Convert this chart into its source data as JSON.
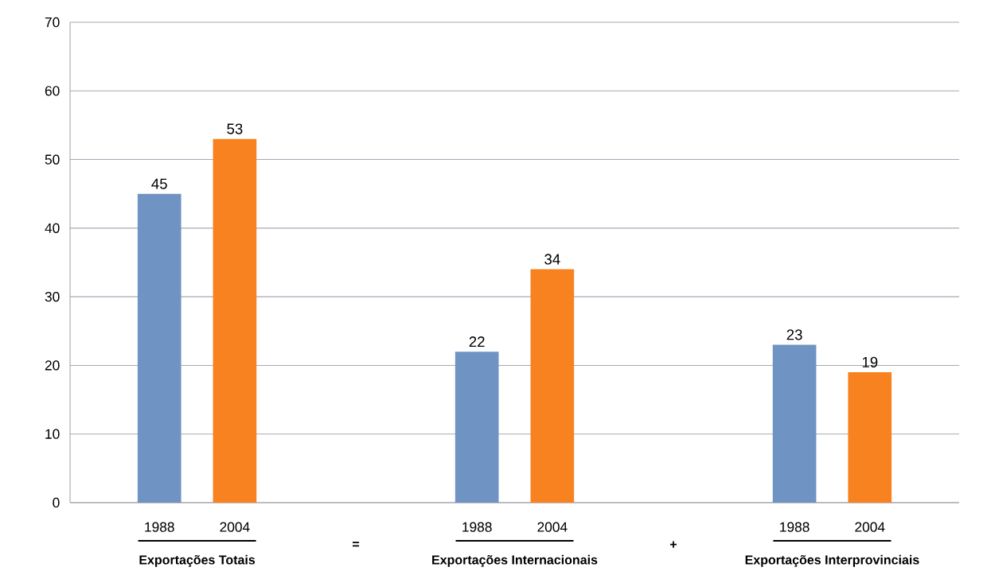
{
  "chart_data": {
    "type": "bar",
    "categories": [
      "Exportações Totais",
      "Exportações  Internacionais",
      "Exportações Interprovinciais"
    ],
    "series": [
      {
        "name": "1988",
        "color": "#6f93c3",
        "values": [
          45,
          22,
          23
        ]
      },
      {
        "name": "2004",
        "color": "#f7821f",
        "values": [
          53,
          34,
          19
        ]
      }
    ],
    "ylim": [
      0,
      70
    ],
    "yticks": [
      0,
      10,
      20,
      30,
      40,
      50,
      60,
      70
    ],
    "grid": "y",
    "data_labels": true,
    "annotations": [
      "=",
      "+"
    ]
  }
}
